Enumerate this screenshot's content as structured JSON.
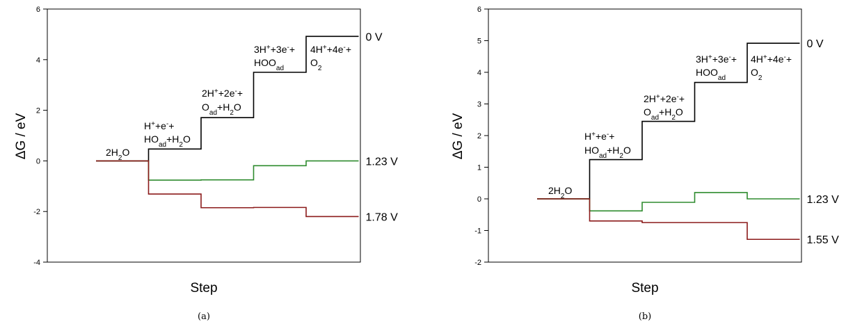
{
  "chart_data": [
    {
      "type": "line",
      "step_chart": true,
      "ylabel": "ΔG / eV",
      "xlabel": "Step",
      "caption": "(a)",
      "ylim": [
        -4,
        6
      ],
      "yticks": [
        "-4",
        "-2",
        "0",
        "2",
        "4",
        "6"
      ],
      "steps": 5,
      "grid": false,
      "colors": {
        "0 V": "#000000",
        "1.23 V": "#2e8b2e",
        "1.78 V": "#8b1a1a"
      },
      "series": [
        {
          "name": "0 V",
          "values": [
            0,
            0.47,
            1.71,
            3.5,
            4.92
          ]
        },
        {
          "name": "1.23 V",
          "values": [
            0,
            -0.76,
            -0.75,
            -0.19,
            0
          ]
        },
        {
          "name": "1.78 V",
          "values": [
            0,
            -1.31,
            -1.85,
            -1.84,
            -2.2
          ]
        }
      ],
      "annotations": [
        {
          "lines": [
            "2H2O"
          ]
        },
        {
          "lines": [
            "H++e-+",
            "HOad+H2O"
          ]
        },
        {
          "lines": [
            "2H++2e-+",
            "Oad+H2O"
          ]
        },
        {
          "lines": [
            "3H++3e-+",
            "HOOad"
          ]
        },
        {
          "lines": [
            "4H++4e-+",
            "O2"
          ]
        }
      ]
    },
    {
      "type": "line",
      "step_chart": true,
      "ylabel": "ΔG / eV",
      "xlabel": "Step",
      "caption": "(b)",
      "ylim": [
        -2,
        6
      ],
      "yticks": [
        "-2",
        "-1",
        "0",
        "1",
        "2",
        "3",
        "4",
        "5",
        "6"
      ],
      "steps": 5,
      "grid": false,
      "colors": {
        "0 V": "#000000",
        "1.23 V": "#2e8b2e",
        "1.55 V": "#8b1a1a"
      },
      "series": [
        {
          "name": "0 V",
          "values": [
            0,
            1.24,
            2.45,
            3.68,
            4.92
          ]
        },
        {
          "name": "1.23 V",
          "values": [
            0,
            -0.38,
            -0.11,
            0.2,
            0
          ]
        },
        {
          "name": "1.55 V",
          "values": [
            0,
            -0.7,
            -0.75,
            -0.75,
            -1.28
          ]
        }
      ],
      "annotations": [
        {
          "lines": [
            "2H2O"
          ]
        },
        {
          "lines": [
            "H++e-+",
            "HOad+H2O"
          ]
        },
        {
          "lines": [
            "2H++2e-+",
            "Oad+H2O"
          ]
        },
        {
          "lines": [
            "3H++3e-+",
            "HOOad"
          ]
        },
        {
          "lines": [
            "4H++4e-+",
            "O2"
          ]
        }
      ]
    }
  ]
}
